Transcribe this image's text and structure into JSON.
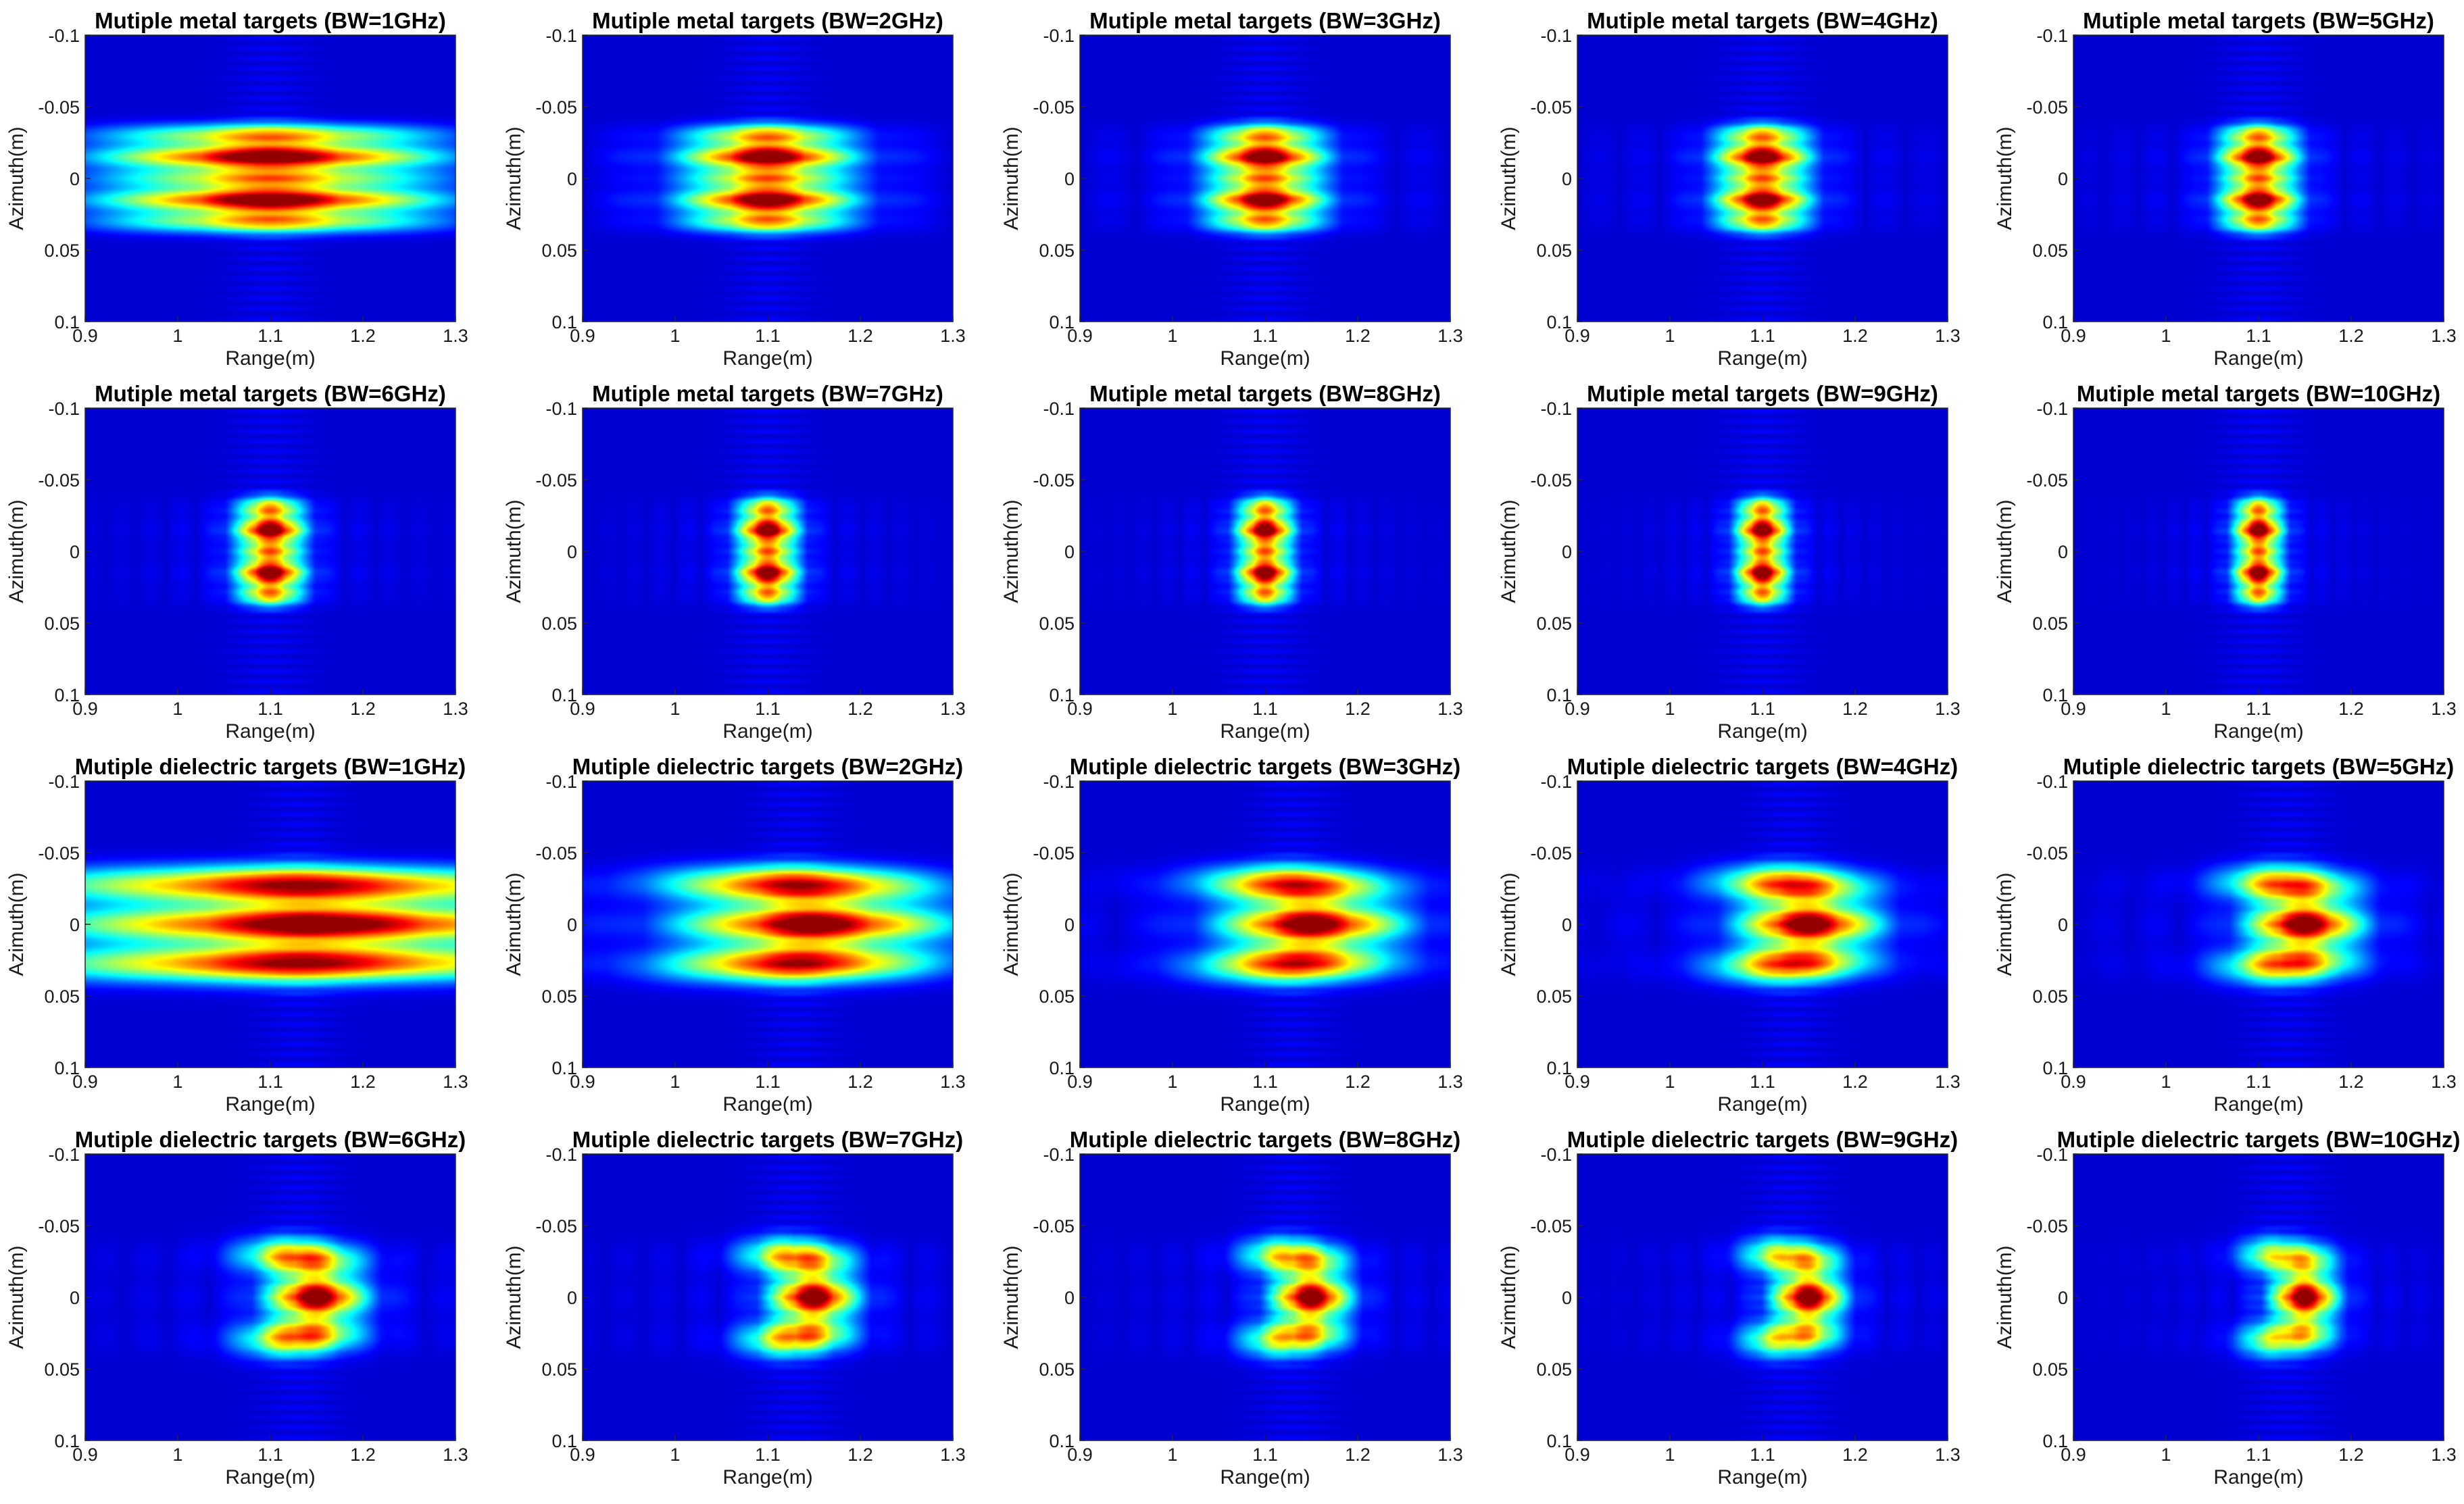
{
  "chart_data": {
    "type": "heatmap",
    "layout": "4x5",
    "colormap": "jet",
    "xlabel": "Range(m)",
    "ylabel": "Azimuth(m)",
    "xlim": [
      0.9,
      1.3
    ],
    "ylim": [
      -0.1,
      0.1
    ],
    "y_reversed": true,
    "x_ticks": [
      "0.9",
      "1",
      "1.1",
      "1.2",
      "1.3"
    ],
    "y_ticks": [
      "-0.1",
      "-0.05",
      "0",
      "0.05",
      "0.1"
    ],
    "panels": [
      {
        "title": "Mutiple metal targets (BW=1GHz)",
        "target": "metal",
        "bw_ghz": 1
      },
      {
        "title": "Mutiple metal targets (BW=2GHz)",
        "target": "metal",
        "bw_ghz": 2
      },
      {
        "title": "Mutiple metal targets (BW=3GHz)",
        "target": "metal",
        "bw_ghz": 3
      },
      {
        "title": "Mutiple metal targets (BW=4GHz)",
        "target": "metal",
        "bw_ghz": 4
      },
      {
        "title": "Mutiple metal targets (BW=5GHz)",
        "target": "metal",
        "bw_ghz": 5
      },
      {
        "title": "Mutiple metal targets (BW=6GHz)",
        "target": "metal",
        "bw_ghz": 6
      },
      {
        "title": "Mutiple metal targets (BW=7GHz)",
        "target": "metal",
        "bw_ghz": 7
      },
      {
        "title": "Mutiple metal targets (BW=8GHz)",
        "target": "metal",
        "bw_ghz": 8
      },
      {
        "title": "Mutiple metal targets (BW=9GHz)",
        "target": "metal",
        "bw_ghz": 9
      },
      {
        "title": "Mutiple metal targets (BW=10GHz)",
        "target": "metal",
        "bw_ghz": 10
      },
      {
        "title": "Mutiple dielectric targets (BW=1GHz)",
        "target": "dielectric",
        "bw_ghz": 1
      },
      {
        "title": "Mutiple dielectric targets (BW=2GHz)",
        "target": "dielectric",
        "bw_ghz": 2
      },
      {
        "title": "Mutiple dielectric targets (BW=3GHz)",
        "target": "dielectric",
        "bw_ghz": 3
      },
      {
        "title": "Mutiple dielectric targets (BW=4GHz)",
        "target": "dielectric",
        "bw_ghz": 4
      },
      {
        "title": "Mutiple dielectric targets (BW=5GHz)",
        "target": "dielectric",
        "bw_ghz": 5
      },
      {
        "title": "Mutiple dielectric targets (BW=6GHz)",
        "target": "dielectric",
        "bw_ghz": 6
      },
      {
        "title": "Mutiple dielectric targets (BW=7GHz)",
        "target": "dielectric",
        "bw_ghz": 7
      },
      {
        "title": "Mutiple dielectric targets (BW=8GHz)",
        "target": "dielectric",
        "bw_ghz": 8
      },
      {
        "title": "Mutiple dielectric targets (BW=9GHz)",
        "target": "dielectric",
        "bw_ghz": 9
      },
      {
        "title": "Mutiple dielectric targets (BW=10GHz)",
        "target": "dielectric",
        "bw_ghz": 10
      }
    ],
    "metal_scatterers": [
      {
        "range": 1.1,
        "azimuth": -0.03,
        "amp": 0.65
      },
      {
        "range": 1.1,
        "azimuth": -0.015,
        "amp": 1.0
      },
      {
        "range": 1.1,
        "azimuth": 0.0,
        "amp": 0.65
      },
      {
        "range": 1.1,
        "azimuth": 0.015,
        "amp": 1.0
      },
      {
        "range": 1.1,
        "azimuth": 0.03,
        "amp": 0.65
      }
    ],
    "dielectric_scatterers": [
      {
        "range": 1.15,
        "azimuth": -0.025,
        "amp": 0.55
      },
      {
        "range": 1.15,
        "azimuth": 0.0,
        "amp": 1.0
      },
      {
        "range": 1.15,
        "azimuth": 0.025,
        "amp": 0.55
      },
      {
        "range": 1.11,
        "azimuth": -0.03,
        "amp": 0.4
      },
      {
        "range": 1.11,
        "azimuth": 0.03,
        "amp": 0.4
      }
    ]
  }
}
